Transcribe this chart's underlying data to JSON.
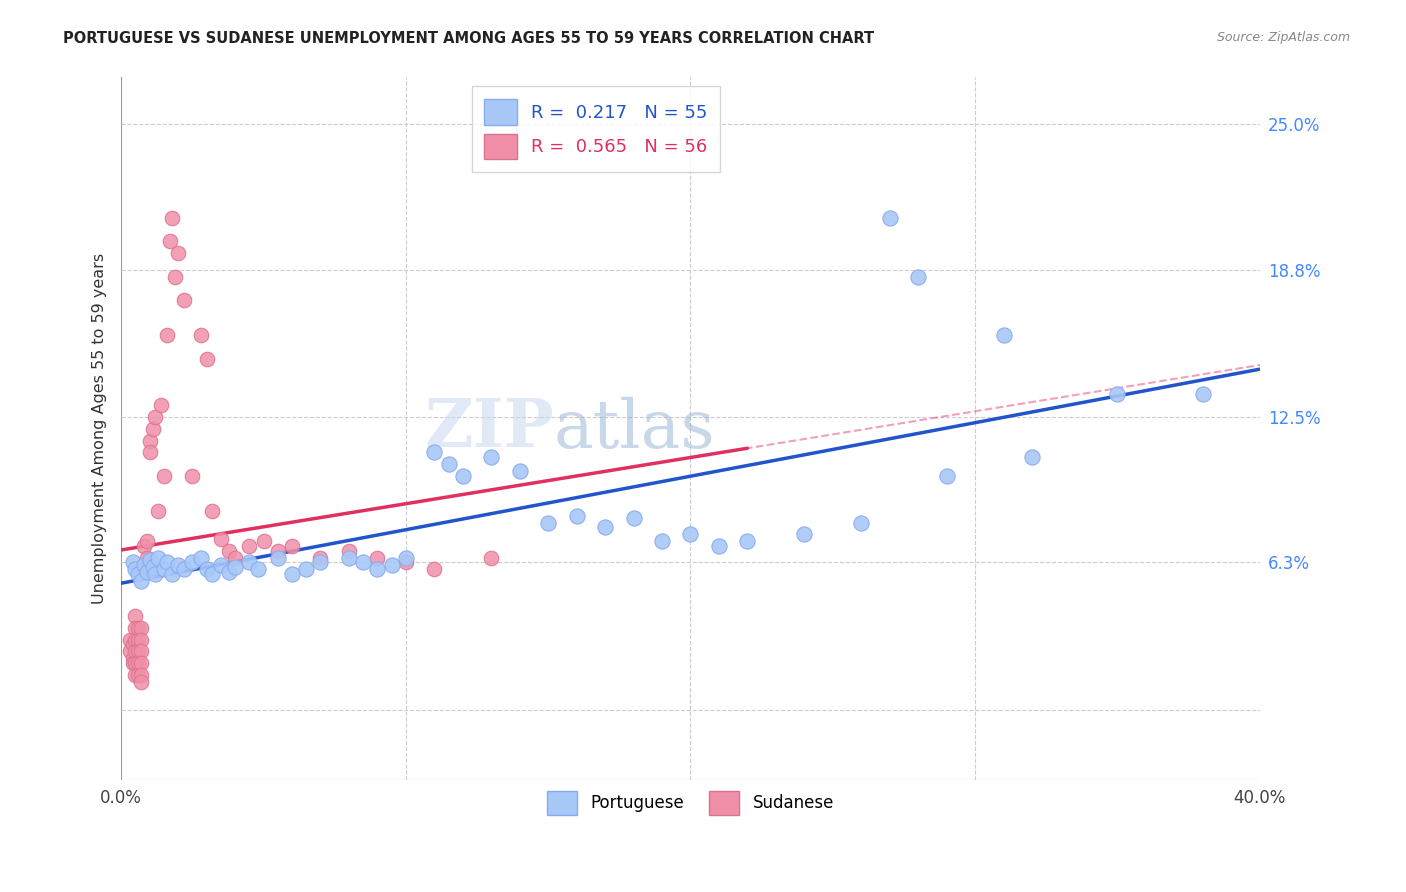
{
  "title": "PORTUGUESE VS SUDANESE UNEMPLOYMENT AMONG AGES 55 TO 59 YEARS CORRELATION CHART",
  "source": "Source: ZipAtlas.com",
  "ylabel": "Unemployment Among Ages 55 to 59 years",
  "xlim": [
    0.0,
    0.4
  ],
  "ylim": [
    -0.03,
    0.27
  ],
  "ytick_positions": [
    0.0,
    0.063,
    0.125,
    0.188,
    0.25
  ],
  "ytick_labels": [
    "",
    "6.3%",
    "12.5%",
    "18.8%",
    "25.0%"
  ],
  "R_blue": 0.217,
  "N_blue": 55,
  "R_pink": 0.565,
  "N_pink": 56,
  "blue_color": "#a8c8f8",
  "pink_color": "#f090a8",
  "blue_line_color": "#2255cc",
  "pink_line_color": "#e03060",
  "watermark_zip": "ZIP",
  "watermark_atlas": "atlas",
  "portuguese_data": [
    [
      0.004,
      0.063
    ],
    [
      0.005,
      0.06
    ],
    [
      0.006,
      0.058
    ],
    [
      0.007,
      0.055
    ],
    [
      0.008,
      0.062
    ],
    [
      0.009,
      0.059
    ],
    [
      0.01,
      0.064
    ],
    [
      0.011,
      0.061
    ],
    [
      0.012,
      0.058
    ],
    [
      0.013,
      0.065
    ],
    [
      0.015,
      0.06
    ],
    [
      0.016,
      0.063
    ],
    [
      0.018,
      0.058
    ],
    [
      0.02,
      0.062
    ],
    [
      0.022,
      0.06
    ],
    [
      0.025,
      0.063
    ],
    [
      0.028,
      0.065
    ],
    [
      0.03,
      0.06
    ],
    [
      0.032,
      0.058
    ],
    [
      0.035,
      0.062
    ],
    [
      0.038,
      0.059
    ],
    [
      0.04,
      0.061
    ],
    [
      0.045,
      0.063
    ],
    [
      0.048,
      0.06
    ],
    [
      0.055,
      0.065
    ],
    [
      0.06,
      0.058
    ],
    [
      0.065,
      0.06
    ],
    [
      0.07,
      0.063
    ],
    [
      0.08,
      0.065
    ],
    [
      0.085,
      0.063
    ],
    [
      0.09,
      0.06
    ],
    [
      0.095,
      0.062
    ],
    [
      0.1,
      0.065
    ],
    [
      0.11,
      0.11
    ],
    [
      0.115,
      0.105
    ],
    [
      0.12,
      0.1
    ],
    [
      0.13,
      0.108
    ],
    [
      0.14,
      0.102
    ],
    [
      0.15,
      0.08
    ],
    [
      0.16,
      0.083
    ],
    [
      0.17,
      0.078
    ],
    [
      0.18,
      0.082
    ],
    [
      0.19,
      0.072
    ],
    [
      0.2,
      0.075
    ],
    [
      0.21,
      0.07
    ],
    [
      0.22,
      0.072
    ],
    [
      0.24,
      0.075
    ],
    [
      0.26,
      0.08
    ],
    [
      0.27,
      0.21
    ],
    [
      0.28,
      0.185
    ],
    [
      0.29,
      0.1
    ],
    [
      0.31,
      0.16
    ],
    [
      0.32,
      0.108
    ],
    [
      0.35,
      0.135
    ],
    [
      0.38,
      0.135
    ]
  ],
  "sudanese_data": [
    [
      0.003,
      0.03
    ],
    [
      0.003,
      0.025
    ],
    [
      0.004,
      0.028
    ],
    [
      0.004,
      0.022
    ],
    [
      0.004,
      0.02
    ],
    [
      0.005,
      0.04
    ],
    [
      0.005,
      0.035
    ],
    [
      0.005,
      0.03
    ],
    [
      0.005,
      0.025
    ],
    [
      0.005,
      0.02
    ],
    [
      0.005,
      0.015
    ],
    [
      0.006,
      0.035
    ],
    [
      0.006,
      0.03
    ],
    [
      0.006,
      0.025
    ],
    [
      0.006,
      0.02
    ],
    [
      0.006,
      0.015
    ],
    [
      0.007,
      0.035
    ],
    [
      0.007,
      0.03
    ],
    [
      0.007,
      0.025
    ],
    [
      0.007,
      0.02
    ],
    [
      0.007,
      0.015
    ],
    [
      0.007,
      0.012
    ],
    [
      0.008,
      0.07
    ],
    [
      0.008,
      0.06
    ],
    [
      0.009,
      0.072
    ],
    [
      0.009,
      0.065
    ],
    [
      0.01,
      0.115
    ],
    [
      0.01,
      0.11
    ],
    [
      0.011,
      0.12
    ],
    [
      0.012,
      0.125
    ],
    [
      0.013,
      0.085
    ],
    [
      0.014,
      0.13
    ],
    [
      0.015,
      0.1
    ],
    [
      0.016,
      0.16
    ],
    [
      0.017,
      0.2
    ],
    [
      0.018,
      0.21
    ],
    [
      0.019,
      0.185
    ],
    [
      0.02,
      0.195
    ],
    [
      0.022,
      0.175
    ],
    [
      0.025,
      0.1
    ],
    [
      0.028,
      0.16
    ],
    [
      0.03,
      0.15
    ],
    [
      0.032,
      0.085
    ],
    [
      0.035,
      0.073
    ],
    [
      0.038,
      0.068
    ],
    [
      0.04,
      0.065
    ],
    [
      0.045,
      0.07
    ],
    [
      0.05,
      0.072
    ],
    [
      0.055,
      0.068
    ],
    [
      0.06,
      0.07
    ],
    [
      0.07,
      0.065
    ],
    [
      0.08,
      0.068
    ],
    [
      0.09,
      0.065
    ],
    [
      0.1,
      0.063
    ],
    [
      0.11,
      0.06
    ],
    [
      0.13,
      0.065
    ]
  ],
  "blue_line": [
    0.0,
    0.4,
    0.06,
    0.105
  ],
  "pink_line_dash": [
    0.22,
    0.42
  ]
}
